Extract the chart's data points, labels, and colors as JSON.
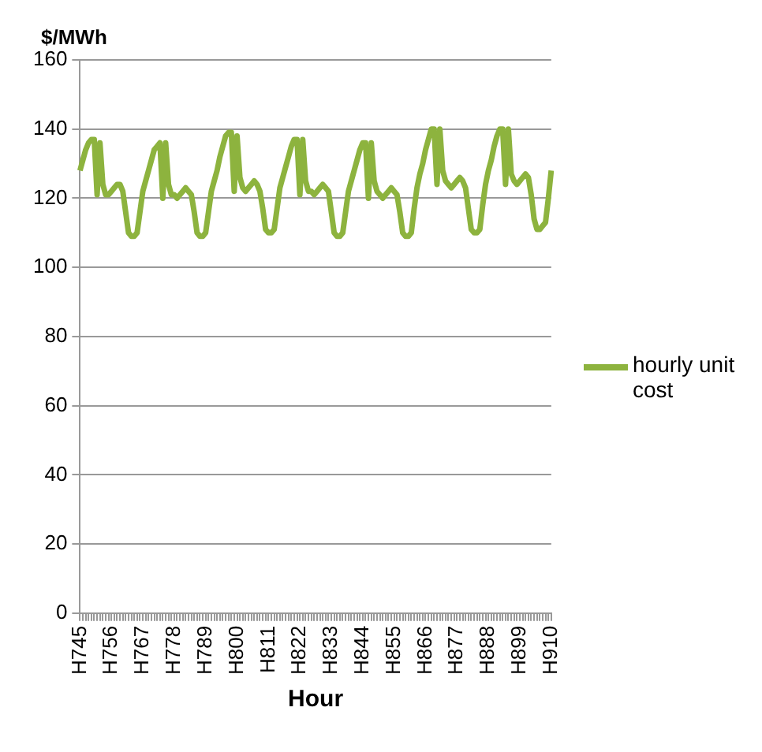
{
  "chart_data": {
    "type": "line",
    "xlabel": "Hour",
    "ylabel": "$/MWh",
    "categories": [
      "H745",
      null,
      null,
      null,
      null,
      null,
      null,
      null,
      null,
      null,
      null,
      "H756",
      null,
      null,
      null,
      null,
      null,
      null,
      null,
      null,
      null,
      null,
      "H767",
      null,
      null,
      null,
      null,
      null,
      null,
      null,
      null,
      null,
      null,
      "H778",
      null,
      null,
      null,
      null,
      null,
      null,
      null,
      null,
      null,
      null,
      "H789",
      null,
      null,
      null,
      null,
      null,
      null,
      null,
      null,
      null,
      null,
      "H800",
      null,
      null,
      null,
      null,
      null,
      null,
      null,
      null,
      null,
      null,
      "H811",
      null,
      null,
      null,
      null,
      null,
      null,
      null,
      null,
      null,
      null,
      "H822",
      null,
      null,
      null,
      null,
      null,
      null,
      null,
      null,
      null,
      null,
      "H833",
      null,
      null,
      null,
      null,
      null,
      null,
      null,
      null,
      null,
      null,
      "H844",
      null,
      null,
      null,
      null,
      null,
      null,
      null,
      null,
      null,
      null,
      "H855",
      null,
      null,
      null,
      null,
      null,
      null,
      null,
      null,
      null,
      null,
      "H866",
      null,
      null,
      null,
      null,
      null,
      null,
      null,
      null,
      null,
      null,
      "H877",
      null,
      null,
      null,
      null,
      null,
      null,
      null,
      null,
      null,
      null,
      "H888",
      null,
      null,
      null,
      null,
      null,
      null,
      null,
      null,
      null,
      null,
      "H899",
      null,
      null,
      null,
      null,
      null,
      null,
      null,
      null,
      null,
      null,
      "H910"
    ],
    "series": [
      {
        "name": "hourly unit cost",
        "color": "#8db33e",
        "values": [
          128,
          131,
          134,
          136,
          137,
          137,
          121,
          136,
          124,
          121,
          121,
          122,
          123,
          124,
          124,
          122,
          116,
          110,
          109,
          109,
          110,
          116,
          122,
          125,
          128,
          131,
          134,
          135,
          136,
          120,
          136,
          124,
          121,
          121,
          120,
          121,
          122,
          123,
          122,
          121,
          116,
          110,
          109,
          109,
          110,
          116,
          122,
          125,
          128,
          132,
          135,
          138,
          139,
          139,
          122,
          138,
          126,
          123,
          122,
          123,
          124,
          125,
          124,
          122,
          117,
          111,
          110,
          110,
          111,
          117,
          123,
          126,
          129,
          132,
          135,
          137,
          137,
          121,
          137,
          125,
          122,
          122,
          121,
          122,
          123,
          124,
          123,
          122,
          116,
          110,
          109,
          109,
          110,
          116,
          122,
          125,
          128,
          131,
          134,
          136,
          136,
          120,
          136,
          125,
          122,
          121,
          120,
          121,
          122,
          123,
          122,
          121,
          116,
          110,
          109,
          109,
          110,
          117,
          123,
          127,
          130,
          134,
          137,
          140,
          140,
          124,
          140,
          128,
          125,
          124,
          123,
          124,
          125,
          126,
          125,
          123,
          117,
          111,
          110,
          110,
          111,
          118,
          124,
          128,
          131,
          135,
          138,
          140,
          140,
          124,
          140,
          127,
          125,
          124,
          125,
          126,
          127,
          126,
          121,
          114,
          111,
          111,
          112,
          113,
          120,
          128
        ]
      }
    ],
    "ylim": [
      0,
      160
    ],
    "yticks": [
      0,
      20,
      40,
      60,
      80,
      100,
      120,
      140,
      160
    ],
    "grid": "y",
    "legend": "right",
    "marker": "none",
    "line_style": "solid"
  }
}
